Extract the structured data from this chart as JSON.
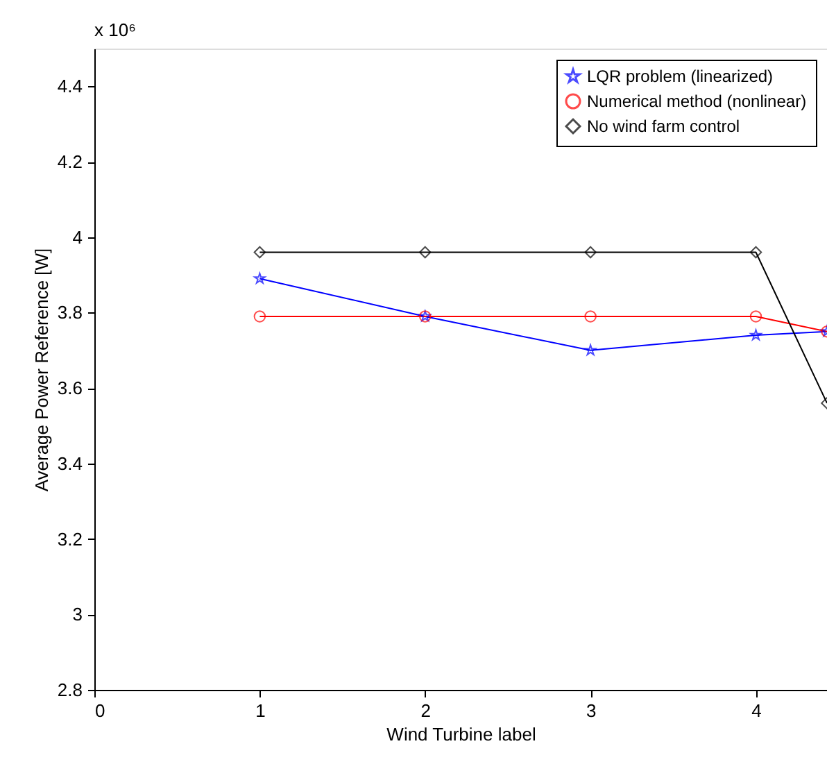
{
  "chart_data": {
    "type": "line",
    "xlabel": "Wind Turbine label",
    "ylabel": "Average Power Reference [W]",
    "annotations": [
      "x 10⁶"
    ],
    "series": [
      {
        "name": "LQR problem (linearized)",
        "color": "#0000ff",
        "marker": "star",
        "x": [
          1,
          2,
          3,
          4,
          4.43
        ],
        "values": [
          3.89,
          3.79,
          3.7,
          3.74,
          3.75
        ]
      },
      {
        "name": "Numerical method (nonlinear)",
        "color": "#ff0000",
        "marker": "circle",
        "x": [
          1,
          2,
          3,
          4,
          4.43
        ],
        "values": [
          3.79,
          3.79,
          3.79,
          3.79,
          3.75
        ]
      },
      {
        "name": "No wind farm control",
        "color": "#000000",
        "marker": "diamond",
        "x": [
          1,
          2,
          3,
          4,
          4.43
        ],
        "values": [
          3.96,
          3.96,
          3.96,
          3.96,
          3.56
        ]
      }
    ],
    "xlim": [
      0,
      4.43
    ],
    "xticks": [
      0,
      1,
      2,
      3,
      4
    ],
    "ylim": [
      2.8,
      4.5
    ],
    "yticks": [
      2.8,
      3,
      3.2,
      3.4,
      3.6,
      3.8,
      4,
      4.2,
      4.4
    ],
    "grid": false,
    "legend": "top right",
    "line_style": "solid"
  }
}
